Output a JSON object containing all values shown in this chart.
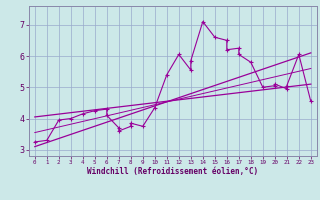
{
  "title": "",
  "xlabel": "Windchill (Refroidissement éolien,°C)",
  "ylabel": "",
  "bg_color": "#cce8e8",
  "line_color": "#990099",
  "grid_color": "#99aacc",
  "xlim": [
    -0.5,
    23.5
  ],
  "ylim": [
    2.8,
    7.6
  ],
  "xticks": [
    0,
    1,
    2,
    3,
    4,
    5,
    6,
    7,
    8,
    9,
    10,
    11,
    12,
    13,
    14,
    15,
    16,
    17,
    18,
    19,
    20,
    21,
    22,
    23
  ],
  "yticks": [
    3,
    4,
    5,
    6,
    7
  ],
  "scatter_x": [
    0,
    1,
    2,
    3,
    4,
    5,
    6,
    6,
    7,
    7,
    8,
    8,
    9,
    10,
    11,
    12,
    13,
    13,
    14,
    15,
    16,
    16,
    17,
    17,
    18,
    19,
    20,
    20,
    21,
    21,
    22,
    23
  ],
  "scatter_y": [
    3.25,
    3.3,
    3.95,
    4.0,
    4.15,
    4.25,
    4.3,
    4.1,
    3.7,
    3.6,
    3.75,
    3.85,
    3.75,
    4.35,
    5.4,
    6.05,
    5.55,
    5.85,
    7.1,
    6.6,
    6.5,
    6.2,
    6.25,
    6.05,
    5.8,
    5.0,
    5.05,
    5.1,
    4.95,
    5.05,
    6.05,
    4.55
  ],
  "trend1_x": [
    0,
    23
  ],
  "trend1_y": [
    3.1,
    6.1
  ],
  "trend2_x": [
    0,
    23
  ],
  "trend2_y": [
    4.05,
    5.1
  ],
  "trend3_x": [
    0,
    23
  ],
  "trend3_y": [
    3.55,
    5.6
  ],
  "xlabel_color": "#660066",
  "tick_color": "#660066",
  "spine_color": "#8888aa"
}
